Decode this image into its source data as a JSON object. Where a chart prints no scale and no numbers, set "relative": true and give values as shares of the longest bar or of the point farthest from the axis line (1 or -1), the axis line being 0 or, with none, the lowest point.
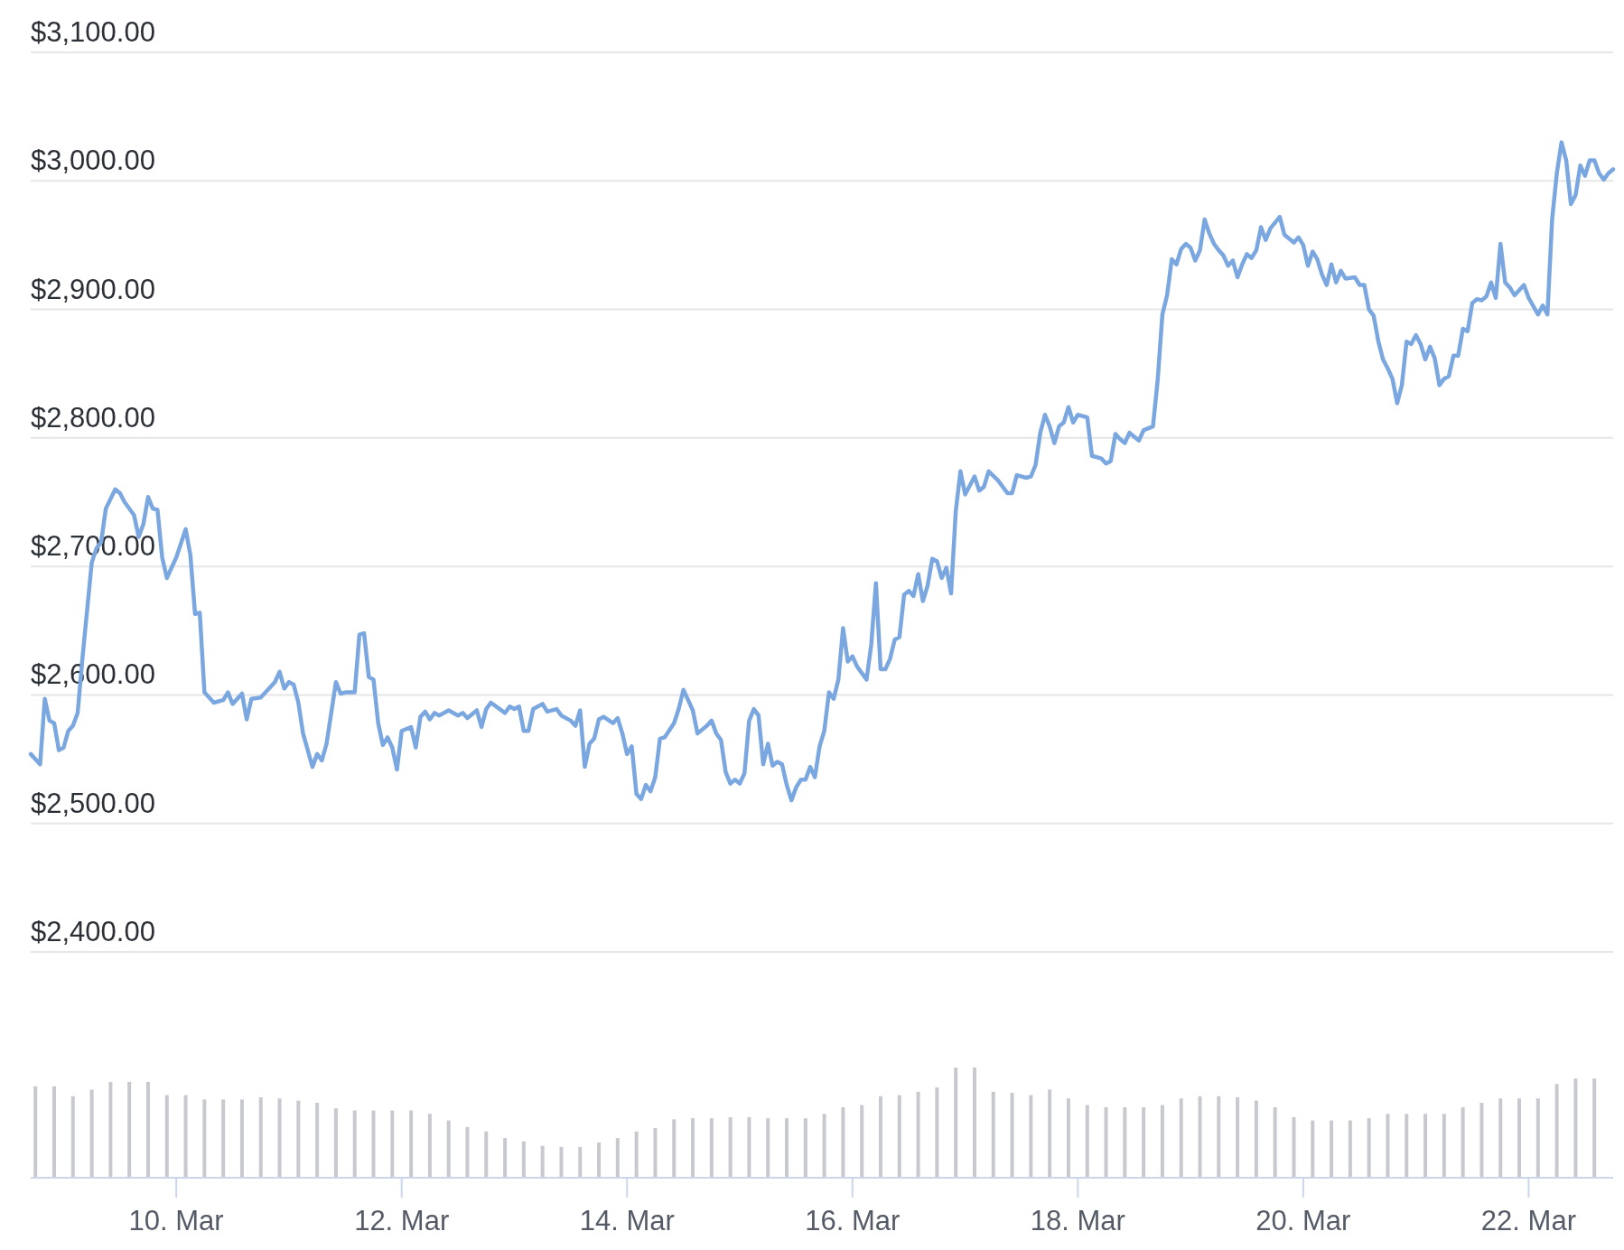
{
  "chart_data": [
    {
      "type": "line",
      "ylim": [
        2400,
        3100
      ],
      "xlim": [
        "--03-08T17:00",
        "--03-22T18:00"
      ],
      "grid": "y",
      "tick_labels": "y",
      "yticks": [
        {
          "value": 2400,
          "label": "$2,400.00"
        },
        {
          "value": 2500,
          "label": "$2,500.00"
        },
        {
          "value": 2600,
          "label": "$2,600.00"
        },
        {
          "value": 2700,
          "label": "$2,700.00"
        },
        {
          "value": 2800,
          "label": "$2,800.00"
        },
        {
          "value": 2900,
          "label": "$2,900.00"
        },
        {
          "value": 3000,
          "label": "$3,000.00"
        },
        {
          "value": 3100,
          "label": "$3,100.00"
        }
      ],
      "series": [
        {
          "color": "#7ba7e1",
          "x": [
            "--03-08T17:00",
            "--03-08T19:00",
            "--03-08T20:00",
            "--03-08T21:00",
            "--03-08T22:00",
            "--03-08T23:00",
            "--03-09T00:00",
            "--03-09T01:00",
            "--03-09T02:00",
            "--03-09T03:00",
            "--03-09T04:00",
            "--03-09T06:00",
            "--03-09T07:00",
            "--03-09T08:00",
            "--03-09T09:00",
            "--03-09T11:00",
            "--03-09T12:00",
            "--03-09T13:00",
            "--03-09T15:00",
            "--03-09T16:00",
            "--03-09T17:00",
            "--03-09T18:00",
            "--03-09T19:00",
            "--03-09T20:00",
            "--03-09T21:00",
            "--03-09T22:00",
            "--03-10T00:00",
            "--03-10T02:00",
            "--03-10T03:00",
            "--03-10T04:00",
            "--03-10T05:00",
            "--03-10T06:00",
            "--03-10T08:00",
            "--03-10T10:00",
            "--03-10T11:00",
            "--03-10T12:00",
            "--03-10T14:00",
            "--03-10T15:00",
            "--03-10T16:00",
            "--03-10T18:00",
            "--03-10T19:00",
            "--03-10T21:00",
            "--03-10T22:00",
            "--03-10T23:00",
            "--03-11T00:00",
            "--03-11T01:00",
            "--03-11T02:00",
            "--03-11T03:00",
            "--03-11T05:00",
            "--03-11T06:00",
            "--03-11T07:00",
            "--03-11T08:00",
            "--03-11T09:00",
            "--03-11T10:00",
            "--03-11T11:00",
            "--03-11T12:00",
            "--03-11T14:00",
            "--03-11T15:00",
            "--03-11T16:00",
            "--03-11T17:00",
            "--03-11T18:00",
            "--03-11T19:00",
            "--03-11T20:00",
            "--03-11T21:00",
            "--03-11T22:00",
            "--03-11T23:00",
            "--03-12T00:00",
            "--03-12T02:00",
            "--03-12T03:00",
            "--03-12T04:00",
            "--03-12T05:00",
            "--03-12T06:00",
            "--03-12T07:00",
            "--03-12T08:00",
            "--03-12T10:00",
            "--03-12T12:00",
            "--03-12T13:00",
            "--03-12T14:00",
            "--03-12T16:00",
            "--03-12T17:00",
            "--03-12T18:00",
            "--03-12T19:00",
            "--03-12T22:00",
            "--03-12T23:00",
            "--03-13T00:00",
            "--03-13T01:00",
            "--03-13T02:00",
            "--03-13T03:00",
            "--03-13T04:00",
            "--03-13T06:00",
            "--03-13T07:00",
            "--03-13T09:00",
            "--03-13T10:00",
            "--03-13T12:00",
            "--03-13T13:00",
            "--03-13T14:00",
            "--03-13T15:00",
            "--03-13T16:00",
            "--03-13T17:00",
            "--03-13T18:00",
            "--03-13T19:00",
            "--03-13T21:00",
            "--03-13T22:00",
            "--03-13T23:00",
            "--03-14T00:00",
            "--03-14T01:00",
            "--03-14T02:00",
            "--03-14T03:00",
            "--03-14T04:00",
            "--03-14T05:00",
            "--03-14T06:00",
            "--03-14T07:00",
            "--03-14T08:00",
            "--03-14T10:00",
            "--03-14T11:00",
            "--03-14T12:00",
            "--03-14T14:00",
            "--03-14T15:00",
            "--03-14T17:00",
            "--03-14T18:00",
            "--03-14T19:00",
            "--03-14T20:00",
            "--03-14T21:00",
            "--03-14T22:00",
            "--03-14T23:00",
            "--03-15T00:00",
            "--03-15T01:00",
            "--03-15T02:00",
            "--03-15T03:00",
            "--03-15T04:00",
            "--03-15T05:00",
            "--03-15T06:00",
            "--03-15T07:00",
            "--03-15T08:00",
            "--03-15T09:00",
            "--03-15T10:00",
            "--03-15T11:00",
            "--03-15T12:00",
            "--03-15T13:00",
            "--03-15T14:00",
            "--03-15T15:00",
            "--03-15T16:00",
            "--03-15T17:00",
            "--03-15T18:00",
            "--03-15T19:00",
            "--03-15T20:00",
            "--03-15T21:00",
            "--03-15T22:00",
            "--03-15T23:00",
            "--03-16T00:00",
            "--03-16T01:00",
            "--03-16T03:00",
            "--03-16T04:00",
            "--03-16T05:00",
            "--03-16T06:00",
            "--03-16T07:00",
            "--03-16T08:00",
            "--03-16T09:00",
            "--03-16T10:00",
            "--03-16T11:00",
            "--03-16T12:00",
            "--03-16T13:00",
            "--03-16T14:00",
            "--03-16T15:00",
            "--03-16T16:00",
            "--03-16T17:00",
            "--03-16T18:00",
            "--03-16T19:00",
            "--03-16T20:00",
            "--03-16T21:00",
            "--03-16T22:00",
            "--03-16T23:00",
            "--03-17T00:00",
            "--03-17T02:00",
            "--03-17T03:00",
            "--03-17T04:00",
            "--03-17T05:00",
            "--03-17T07:00",
            "--03-17T09:00",
            "--03-17T10:00",
            "--03-17T11:00",
            "--03-17T13:00",
            "--03-17T14:00",
            "--03-17T15:00",
            "--03-17T16:00",
            "--03-17T17:00",
            "--03-17T18:00",
            "--03-17T19:00",
            "--03-17T20:00",
            "--03-17T21:00",
            "--03-17T22:00",
            "--03-17T23:00",
            "--03-18T00:00",
            "--03-18T02:00",
            "--03-18T03:00",
            "--03-18T05:00",
            "--03-18T06:00",
            "--03-18T07:00",
            "--03-18T08:00",
            "--03-18T09:00",
            "--03-18T10:00",
            "--03-18T11:00",
            "--03-18T13:00",
            "--03-18T14:00",
            "--03-18T16:00",
            "--03-18T17:00",
            "--03-18T18:00",
            "--03-18T19:00",
            "--03-18T20:00",
            "--03-18T21:00",
            "--03-18T22:00",
            "--03-18T23:00",
            "--03-19T00:00",
            "--03-19T01:00",
            "--03-19T02:00",
            "--03-19T03:00",
            "--03-19T04:00",
            "--03-19T05:00",
            "--03-19T06:00",
            "--03-19T07:00",
            "--03-19T08:00",
            "--03-19T09:00",
            "--03-19T10:00",
            "--03-19T11:00",
            "--03-19T12:00",
            "--03-19T13:00",
            "--03-19T14:00",
            "--03-19T15:00",
            "--03-19T16:00",
            "--03-19T17:00",
            "--03-19T19:00",
            "--03-19T20:00",
            "--03-19T22:00",
            "--03-19T23:00",
            "--03-20T00:00",
            "--03-20T01:00",
            "--03-20T02:00",
            "--03-20T03:00",
            "--03-20T04:00",
            "--03-20T05:00",
            "--03-20T06:00",
            "--03-20T07:00",
            "--03-20T08:00",
            "--03-20T09:00",
            "--03-20T11:00",
            "--03-20T12:00",
            "--03-20T13:00",
            "--03-20T14:00",
            "--03-20T15:00",
            "--03-20T16:00",
            "--03-20T17:00",
            "--03-20T18:00",
            "--03-20T19:00",
            "--03-20T20:00",
            "--03-20T21:00",
            "--03-20T22:00",
            "--03-20T23:00",
            "--03-21T00:00",
            "--03-21T01:00",
            "--03-21T02:00",
            "--03-21T03:00",
            "--03-21T04:00",
            "--03-21T05:00",
            "--03-21T06:00",
            "--03-21T07:00",
            "--03-21T08:00",
            "--03-21T09:00",
            "--03-21T10:00",
            "--03-21T11:00",
            "--03-21T12:00",
            "--03-21T13:00",
            "--03-21T14:00",
            "--03-21T15:00",
            "--03-21T16:00",
            "--03-21T17:00",
            "--03-21T18:00",
            "--03-21T19:00",
            "--03-21T20:00",
            "--03-21T21:00",
            "--03-21T22:00",
            "--03-21T23:00",
            "--03-22T00:00",
            "--03-22T02:00",
            "--03-22T03:00",
            "--03-22T04:00",
            "--03-22T05:00",
            "--03-22T06:00",
            "--03-22T07:00",
            "--03-22T08:00",
            "--03-22T09:00",
            "--03-22T10:00",
            "--03-22T11:00",
            "--03-22T12:00",
            "--03-22T13:00",
            "--03-22T14:00",
            "--03-22T15:00",
            "--03-22T16:00",
            "--03-22T17:00",
            "--03-22T18:00"
          ],
          "values": [
            2554,
            2546,
            2597,
            2580,
            2578,
            2557,
            2559,
            2572,
            2576,
            2586,
            2628,
            2703,
            2714,
            2719,
            2745,
            2760,
            2757,
            2750,
            2740,
            2723,
            2733,
            2754,
            2745,
            2744,
            2707,
            2691,
            2707,
            2729,
            2709,
            2663,
            2664,
            2602,
            2594,
            2596,
            2602,
            2593,
            2601,
            2581,
            2597,
            2598,
            2602,
            2610,
            2618,
            2605,
            2610,
            2608,
            2594,
            2570,
            2544,
            2554,
            2549,
            2562,
            2586,
            2610,
            2601,
            2602,
            2602,
            2647,
            2648,
            2614,
            2612,
            2578,
            2561,
            2567,
            2559,
            2542,
            2572,
            2575,
            2559,
            2583,
            2587,
            2581,
            2586,
            2584,
            2588,
            2584,
            2586,
            2582,
            2588,
            2575,
            2589,
            2594,
            2586,
            2591,
            2589,
            2591,
            2572,
            2572,
            2589,
            2593,
            2587,
            2589,
            2584,
            2580,
            2576,
            2588,
            2544,
            2562,
            2566,
            2581,
            2583,
            2578,
            2582,
            2570,
            2554,
            2560,
            2523,
            2519,
            2530,
            2525,
            2536,
            2566,
            2567,
            2578,
            2589,
            2604,
            2588,
            2570,
            2576,
            2580,
            2570,
            2565,
            2540,
            2531,
            2534,
            2531,
            2539,
            2580,
            2589,
            2584,
            2546,
            2562,
            2545,
            2548,
            2546,
            2530,
            2518,
            2528,
            2534,
            2534,
            2544,
            2536,
            2560,
            2572,
            2602,
            2597,
            2612,
            2652,
            2626,
            2630,
            2622,
            2612,
            2639,
            2687,
            2620,
            2620,
            2628,
            2643,
            2645,
            2678,
            2681,
            2677,
            2694,
            2673,
            2685,
            2706,
            2704,
            2691,
            2699,
            2679,
            2743,
            2774,
            2756,
            2770,
            2759,
            2762,
            2774,
            2767,
            2757,
            2757,
            2771,
            2769,
            2770,
            2779,
            2804,
            2818,
            2809,
            2796,
            2809,
            2812,
            2824,
            2812,
            2818,
            2816,
            2786,
            2784,
            2780,
            2782,
            2803,
            2799,
            2796,
            2804,
            2798,
            2806,
            2809,
            2845,
            2896,
            2911,
            2939,
            2935,
            2947,
            2951,
            2948,
            2938,
            2946,
            2970,
            2959,
            2951,
            2946,
            2942,
            2934,
            2938,
            2925,
            2935,
            2943,
            2940,
            2946,
            2964,
            2954,
            2963,
            2972,
            2958,
            2952,
            2956,
            2950,
            2934,
            2945,
            2939,
            2927,
            2919,
            2935,
            2921,
            2930,
            2924,
            2925,
            2919,
            2919,
            2900,
            2895,
            2875,
            2861,
            2854,
            2846,
            2827,
            2841,
            2875,
            2873,
            2880,
            2873,
            2861,
            2871,
            2862,
            2841,
            2846,
            2848,
            2864,
            2864,
            2885,
            2883,
            2905,
            2908,
            2907,
            2910,
            2921,
            2909,
            2951,
            2921,
            2917,
            2911,
            2915,
            2919,
            2909,
            2896,
            2903,
            2896,
            2970,
            3006,
            3030,
            3016,
            2982,
            2989,
            3012,
            3004,
            3016,
            3016,
            3006,
            3001,
            3006,
            3009
          ]
        }
      ]
    },
    {
      "type": "bar",
      "relative": true,
      "tick_labels": "x",
      "xlim": [
        "--03-08T17:00",
        "--03-22T18:00"
      ],
      "xticks": [
        {
          "value": "--03-10",
          "label": "10. Mar"
        },
        {
          "value": "--03-12",
          "label": "12. Mar"
        },
        {
          "value": "--03-14",
          "label": "14. Mar"
        },
        {
          "value": "--03-16",
          "label": "16. Mar"
        },
        {
          "value": "--03-18",
          "label": "18. Mar"
        },
        {
          "value": "--03-20",
          "label": "20. Mar"
        },
        {
          "value": "--03-22",
          "label": "22. Mar"
        }
      ],
      "series": [
        {
          "color": "#c8c9cf",
          "x": [
            "--03-08T18:00",
            "--03-08T22:00",
            "--03-09T02:00",
            "--03-09T06:00",
            "--03-09T10:00",
            "--03-09T14:00",
            "--03-09T18:00",
            "--03-09T22:00",
            "--03-10T02:00",
            "--03-10T06:00",
            "--03-10T10:00",
            "--03-10T14:00",
            "--03-10T18:00",
            "--03-10T22:00",
            "--03-11T02:00",
            "--03-11T06:00",
            "--03-11T10:00",
            "--03-11T14:00",
            "--03-11T18:00",
            "--03-11T22:00",
            "--03-12T02:00",
            "--03-12T06:00",
            "--03-12T10:00",
            "--03-12T14:00",
            "--03-12T18:00",
            "--03-12T22:00",
            "--03-13T02:00",
            "--03-13T06:00",
            "--03-13T10:00",
            "--03-13T14:00",
            "--03-13T18:00",
            "--03-13T22:00",
            "--03-14T02:00",
            "--03-14T06:00",
            "--03-14T10:00",
            "--03-14T14:00",
            "--03-14T18:00",
            "--03-14T22:00",
            "--03-15T02:00",
            "--03-15T06:00",
            "--03-15T10:00",
            "--03-15T14:00",
            "--03-15T18:00",
            "--03-15T22:00",
            "--03-16T02:00",
            "--03-16T06:00",
            "--03-16T10:00",
            "--03-16T14:00",
            "--03-16T18:00",
            "--03-16T22:00",
            "--03-17T02:00",
            "--03-17T06:00",
            "--03-17T10:00",
            "--03-17T14:00",
            "--03-17T18:00",
            "--03-17T22:00",
            "--03-18T02:00",
            "--03-18T06:00",
            "--03-18T10:00",
            "--03-18T14:00",
            "--03-18T18:00",
            "--03-18T22:00",
            "--03-19T02:00",
            "--03-19T06:00",
            "--03-19T10:00",
            "--03-19T14:00",
            "--03-19T18:00",
            "--03-19T22:00",
            "--03-20T02:00",
            "--03-20T06:00",
            "--03-20T10:00",
            "--03-20T14:00",
            "--03-20T18:00",
            "--03-20T22:00",
            "--03-21T02:00",
            "--03-21T06:00",
            "--03-21T10:00",
            "--03-21T14:00",
            "--03-21T18:00",
            "--03-21T22:00",
            "--03-22T02:00",
            "--03-22T06:00",
            "--03-22T10:00",
            "--03-22T14:00"
          ],
          "values": [
            0.83,
            0.83,
            0.74,
            0.8,
            0.87,
            0.87,
            0.87,
            0.75,
            0.75,
            0.71,
            0.71,
            0.71,
            0.73,
            0.72,
            0.7,
            0.68,
            0.63,
            0.61,
            0.61,
            0.61,
            0.61,
            0.58,
            0.52,
            0.46,
            0.42,
            0.36,
            0.33,
            0.29,
            0.28,
            0.28,
            0.32,
            0.36,
            0.42,
            0.45,
            0.53,
            0.54,
            0.54,
            0.55,
            0.55,
            0.54,
            0.54,
            0.54,
            0.58,
            0.64,
            0.66,
            0.74,
            0.75,
            0.78,
            0.82,
            1.0,
            1.0,
            0.78,
            0.77,
            0.75,
            0.8,
            0.72,
            0.66,
            0.64,
            0.64,
            0.64,
            0.66,
            0.72,
            0.74,
            0.74,
            0.73,
            0.7,
            0.64,
            0.55,
            0.52,
            0.52,
            0.52,
            0.54,
            0.58,
            0.58,
            0.58,
            0.58,
            0.64,
            0.68,
            0.72,
            0.72,
            0.72,
            0.85,
            0.9,
            0.9
          ]
        }
      ]
    }
  ]
}
